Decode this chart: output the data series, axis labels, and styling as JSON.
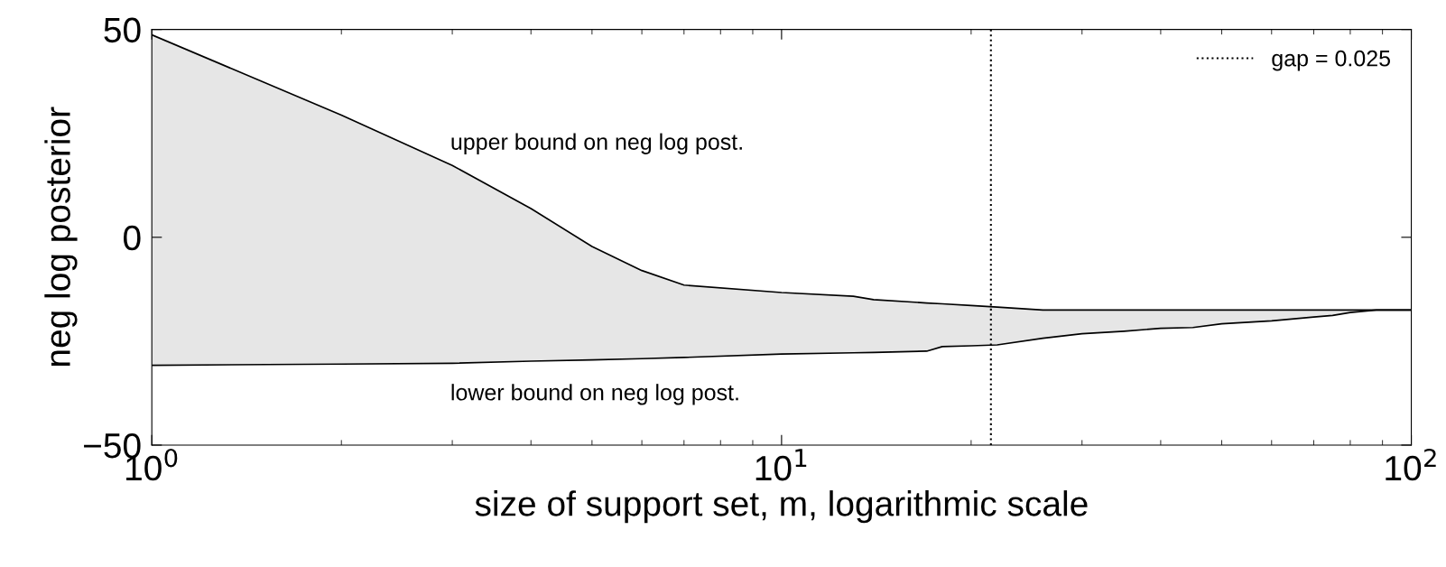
{
  "chart_data": {
    "type": "line",
    "xlabel": "size of support set, m, logarithmic scale",
    "ylabel": "neg log posterior",
    "log": "x",
    "xlim": [
      1,
      100
    ],
    "xticks": [
      {
        "value": 1,
        "label": "10$^{0}$"
      },
      {
        "value": 10,
        "label": "10$^{1}$"
      },
      {
        "value": 100,
        "label": "10$^{2}$"
      }
    ],
    "ylim": [
      -50,
      50
    ],
    "yticks": [
      {
        "value": -50,
        "label": "−50"
      },
      0,
      50
    ],
    "legend": "top right",
    "x": [
      1,
      2,
      3,
      4,
      5,
      6,
      7,
      10,
      13,
      14,
      17,
      18,
      20,
      22,
      26,
      30,
      35,
      40,
      45,
      50,
      60,
      70,
      75,
      80,
      88,
      100
    ],
    "series": [
      {
        "color": "#000000",
        "values": [
          48.7,
          29.4,
          17.3,
          6.9,
          -2.2,
          -8.0,
          -11.5,
          -13.3,
          -14.2,
          -15.0,
          -15.8,
          -16.0,
          -16.4,
          -16.8,
          -17.5,
          -17.5,
          -17.5,
          -17.5,
          -17.5,
          -17.5,
          -17.5,
          -17.5,
          -17.5,
          -17.5,
          -17.5,
          -17.5
        ],
        "lower": [
          -30.8,
          -30.5,
          -30.3,
          -29.8,
          -29.5,
          -29.2,
          -28.9,
          -28.1,
          -27.8,
          -27.7,
          -27.4,
          -26.3,
          -26.1,
          -25.9,
          -24.3,
          -23.2,
          -22.6,
          -21.9,
          -21.7,
          -20.8,
          -20.1,
          -19.2,
          -18.8,
          -18.1,
          -17.5,
          -17.5
        ],
        "upper": [
          48.7,
          29.4,
          17.3,
          6.9,
          -2.2,
          -8.0,
          -11.5,
          -13.3,
          -14.2,
          -15.0,
          -15.8,
          -16.0,
          -16.4,
          -16.8,
          -17.5,
          -17.5,
          -17.5,
          -17.5,
          -17.5,
          -17.5,
          -17.5,
          -17.5,
          -17.5,
          -17.5,
          -17.5,
          -17.5
        ]
      },
      {
        "color": "#000000",
        "values": [
          -30.8,
          -30.5,
          -30.3,
          -29.8,
          -29.5,
          -29.2,
          -28.9,
          -28.1,
          -27.8,
          -27.7,
          -27.4,
          -26.3,
          -26.1,
          -25.9,
          -24.3,
          -23.2,
          -22.6,
          -21.9,
          -21.7,
          -20.8,
          -20.1,
          -19.2,
          -18.8,
          -18.1,
          -17.5,
          -17.5
        ]
      },
      {
        "name": "gap = 0.025",
        "color": "#000000",
        "line_style": "dotted",
        "x": [
          21.5,
          21.5
        ],
        "values": [
          -50,
          50
        ]
      }
    ],
    "annotations": [
      "upper bound on neg log post.",
      "lower bound on neg log post."
    ]
  }
}
